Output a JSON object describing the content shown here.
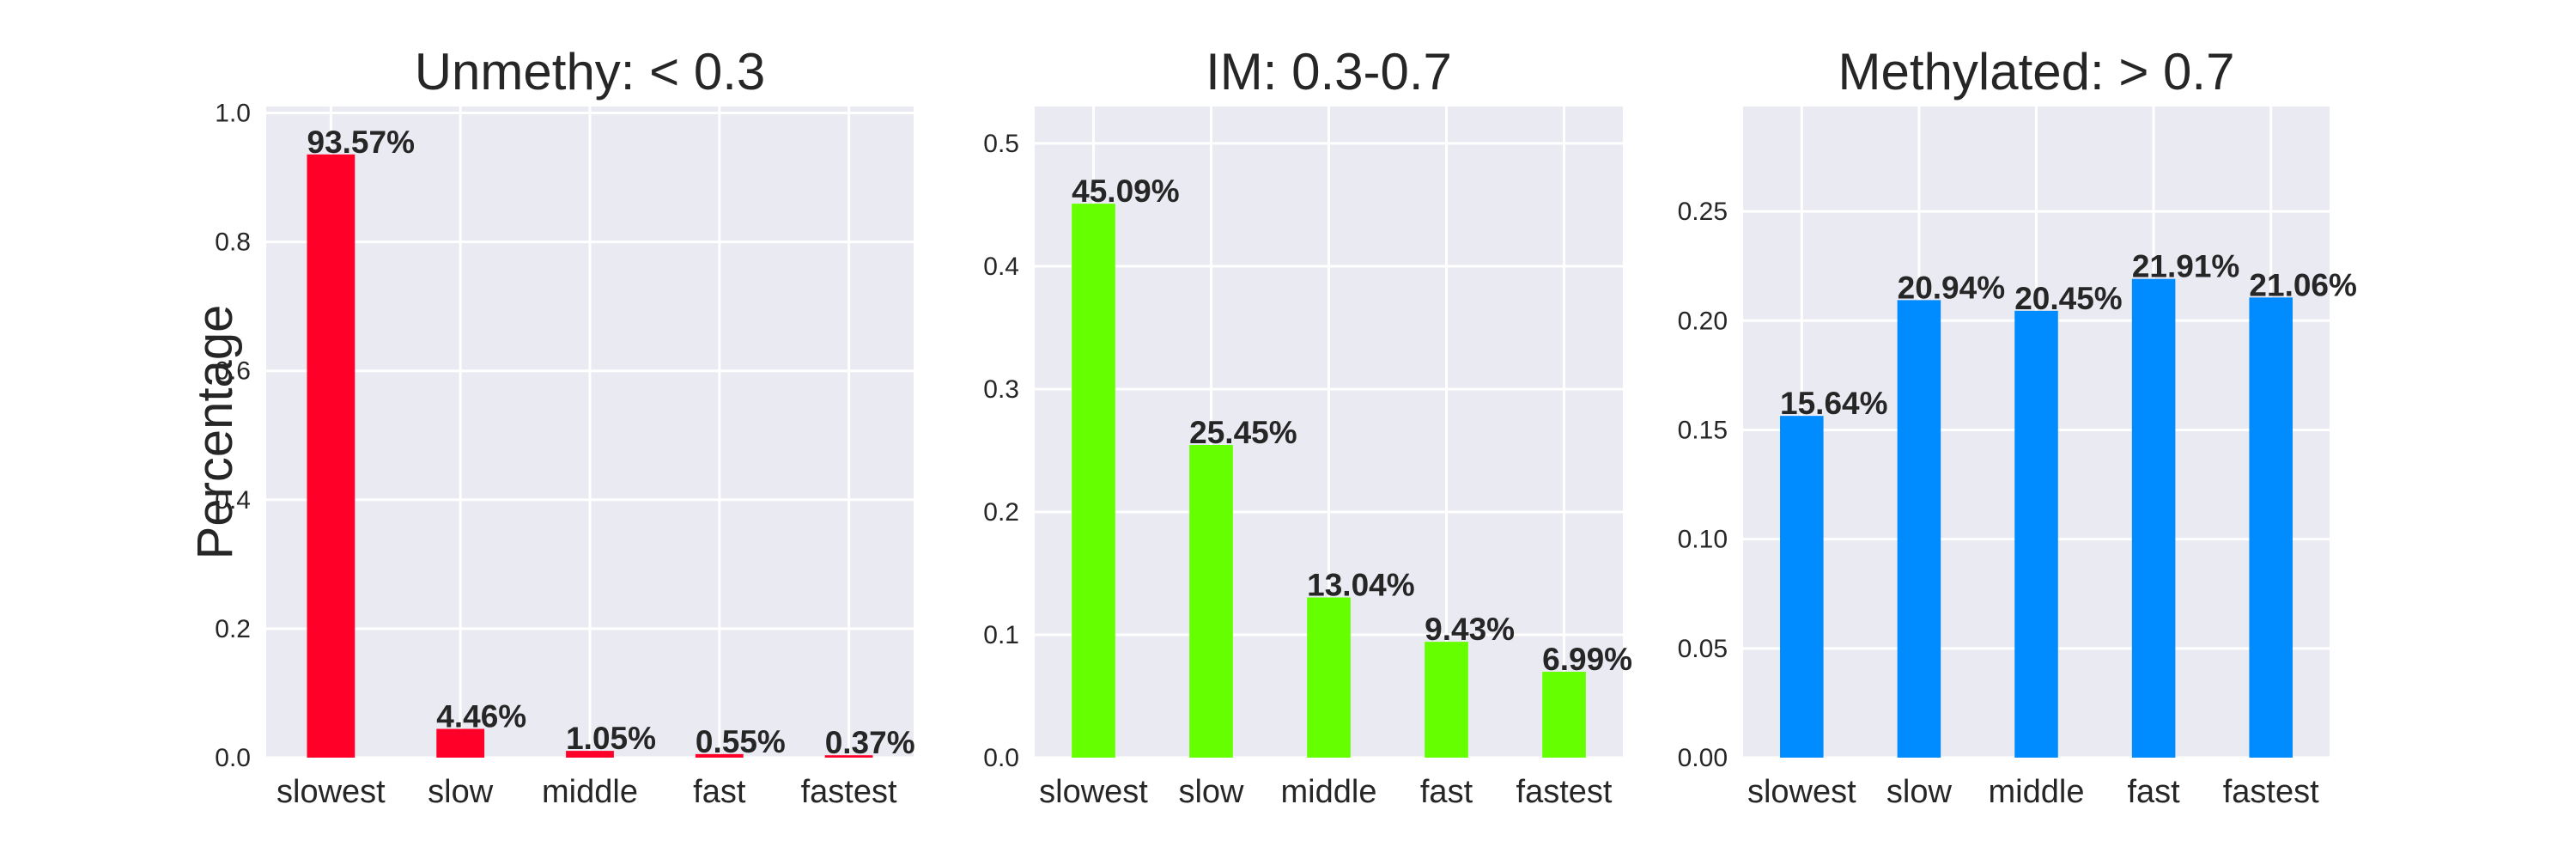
{
  "chart_data": [
    {
      "type": "bar",
      "title": "Unmethy: < 0.3",
      "ylabel": "Percentage",
      "xlabel": "",
      "categories": [
        "slowest",
        "slow",
        "middle",
        "fast",
        "fastest"
      ],
      "values": [
        0.9357,
        0.0446,
        0.0105,
        0.0055,
        0.0037
      ],
      "data_labels": [
        "93.57%",
        "4.46%",
        "1.05%",
        "0.55%",
        "0.37%"
      ],
      "ylim": [
        0,
        1.01
      ],
      "yticks": [
        0.0,
        0.2,
        0.4,
        0.6,
        0.8,
        1.0
      ],
      "ytick_labels": [
        "0.0",
        "0.2",
        "0.4",
        "0.6",
        "0.8",
        "1.0"
      ],
      "color": "#ff0029",
      "grid": true
    },
    {
      "type": "bar",
      "title": "IM: 0.3-0.7",
      "ylabel": "",
      "xlabel": "",
      "categories": [
        "slowest",
        "slow",
        "middle",
        "fast",
        "fastest"
      ],
      "values": [
        0.4509,
        0.2545,
        0.1304,
        0.0943,
        0.0699
      ],
      "data_labels": [
        "45.09%",
        "25.45%",
        "13.04%",
        "9.43%",
        "6.99%"
      ],
      "ylim": [
        0,
        0.53
      ],
      "yticks": [
        0.0,
        0.1,
        0.2,
        0.3,
        0.4,
        0.5
      ],
      "ytick_labels": [
        "0.0",
        "0.1",
        "0.2",
        "0.3",
        "0.4",
        "0.5"
      ],
      "color": "#66ff00",
      "grid": true
    },
    {
      "type": "bar",
      "title": "Methylated: > 0.7",
      "ylabel": "",
      "xlabel": "",
      "categories": [
        "slowest",
        "slow",
        "middle",
        "fast",
        "fastest"
      ],
      "values": [
        0.1564,
        0.2094,
        0.2045,
        0.2191,
        0.2106
      ],
      "data_labels": [
        "15.64%",
        "20.94%",
        "20.45%",
        "21.91%",
        "21.06%"
      ],
      "ylim": [
        0,
        0.298
      ],
      "yticks": [
        0.0,
        0.05,
        0.1,
        0.15,
        0.2,
        0.25
      ],
      "ytick_labels": [
        "0.00",
        "0.05",
        "0.10",
        "0.15",
        "0.20",
        "0.25"
      ],
      "color": "#008cff",
      "grid": true
    }
  ]
}
